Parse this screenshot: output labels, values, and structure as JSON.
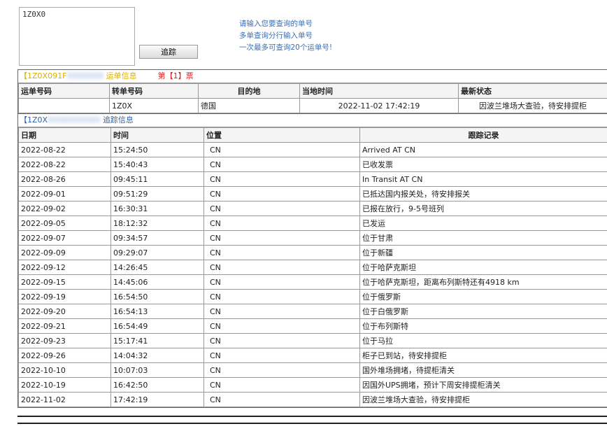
{
  "query": {
    "value": "1Z0X0",
    "button": "追踪",
    "hints": [
      "请输入您要查询的单号",
      "多单查询分行输入单号",
      "一次最多可查询20个运单号!"
    ]
  },
  "shipment": {
    "title_prefix": "【1Z0X091F",
    "title_suffix": "运单信息",
    "ticket": "第【1】票",
    "headers": [
      "运单号码",
      "转单号码",
      "目的地",
      "当地时间",
      "最新状态"
    ],
    "row": {
      "waybill": "",
      "transfer": "1Z0X",
      "dest": "德国",
      "time": "2022-11-02 17:42:19",
      "status": "因波兰堆场大查验，待安排提柜"
    }
  },
  "tracking": {
    "title_prefix": "【1Z0X",
    "title_suffix": "追踪信息",
    "headers": [
      "日期",
      "时间",
      "位置",
      "跟踪记录"
    ],
    "rows": [
      [
        "2022-08-22",
        "15:24:50",
        "CN",
        "Arrived AT CN"
      ],
      [
        "2022-08-22",
        "15:40:43",
        "CN",
        "已收发票"
      ],
      [
        "2022-08-26",
        "09:45:11",
        "CN",
        "In Transit AT CN"
      ],
      [
        "2022-09-01",
        "09:51:29",
        "CN",
        "已抵达国内报关处，待安排报关"
      ],
      [
        "2022-09-02",
        "16:30:31",
        "CN",
        "已报在放行，9-5号班列"
      ],
      [
        "2022-09-05",
        "18:12:32",
        "CN",
        "已发运"
      ],
      [
        "2022-09-07",
        "09:34:57",
        "CN",
        "位于甘肃"
      ],
      [
        "2022-09-09",
        "09:29:07",
        "CN",
        "位于新疆"
      ],
      [
        "2022-09-12",
        "14:26:45",
        "CN",
        "位于哈萨克斯坦"
      ],
      [
        "2022-09-15",
        "14:45:06",
        "CN",
        "位于哈萨克斯坦，距离布列斯特还有4918 km"
      ],
      [
        "2022-09-19",
        "16:54:50",
        "CN",
        "位于俄罗斯"
      ],
      [
        "2022-09-20",
        "16:54:13",
        "CN",
        "位于白俄罗斯"
      ],
      [
        "2022-09-21",
        "16:54:49",
        "CN",
        "位于布列斯特"
      ],
      [
        "2022-09-23",
        "15:17:41",
        "CN",
        "位于马拉"
      ],
      [
        "2022-09-26",
        "14:04:32",
        "CN",
        "柜子已到站，待安排提柜"
      ],
      [
        "2022-10-10",
        "10:07:03",
        "CN",
        "国外堆场拥堵，待提柜清关"
      ],
      [
        "2022-10-19",
        "16:42:50",
        "CN",
        "因国外UPS拥堵，预计下周安排提柜清关"
      ],
      [
        "2022-11-02",
        "17:42:19",
        "CN",
        "因波兰堆场大查验，待安排提柜"
      ]
    ]
  }
}
